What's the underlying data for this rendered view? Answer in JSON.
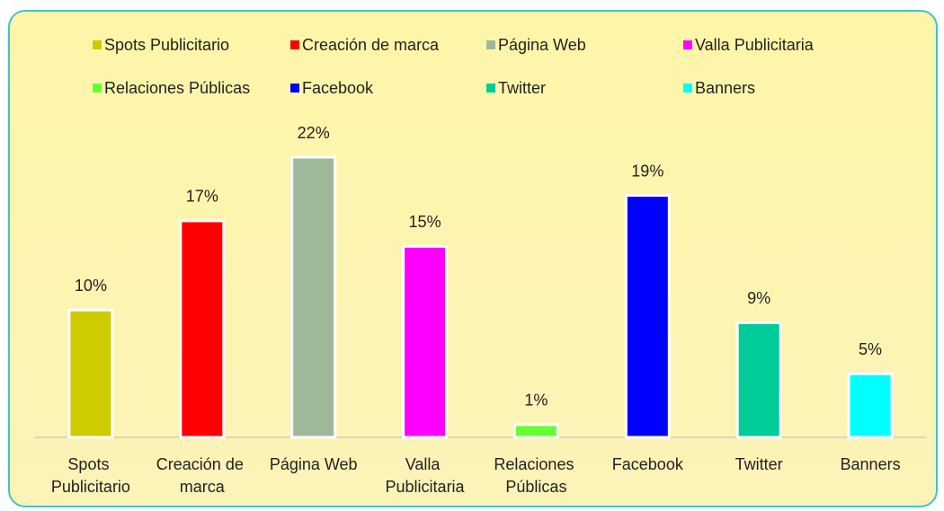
{
  "chart_data": {
    "type": "bar",
    "categories": [
      "Spots Publicitario",
      "Creación de marca",
      "Página Web",
      "Valla Publicitaria",
      "Relaciones Públicas",
      "Facebook",
      "Twitter",
      "Banners"
    ],
    "values": [
      10,
      17,
      22,
      15,
      1,
      19,
      9,
      5
    ],
    "value_labels": [
      "10%",
      "17%",
      "22%",
      "15%",
      "1%",
      "19%",
      "9%",
      "5%"
    ],
    "colors": [
      "#cccc00",
      "#ff0000",
      "#9fb89a",
      "#ff00ff",
      "#66ff33",
      "#0000ff",
      "#00cc99",
      "#00ffff"
    ],
    "legend": "top"
  }
}
